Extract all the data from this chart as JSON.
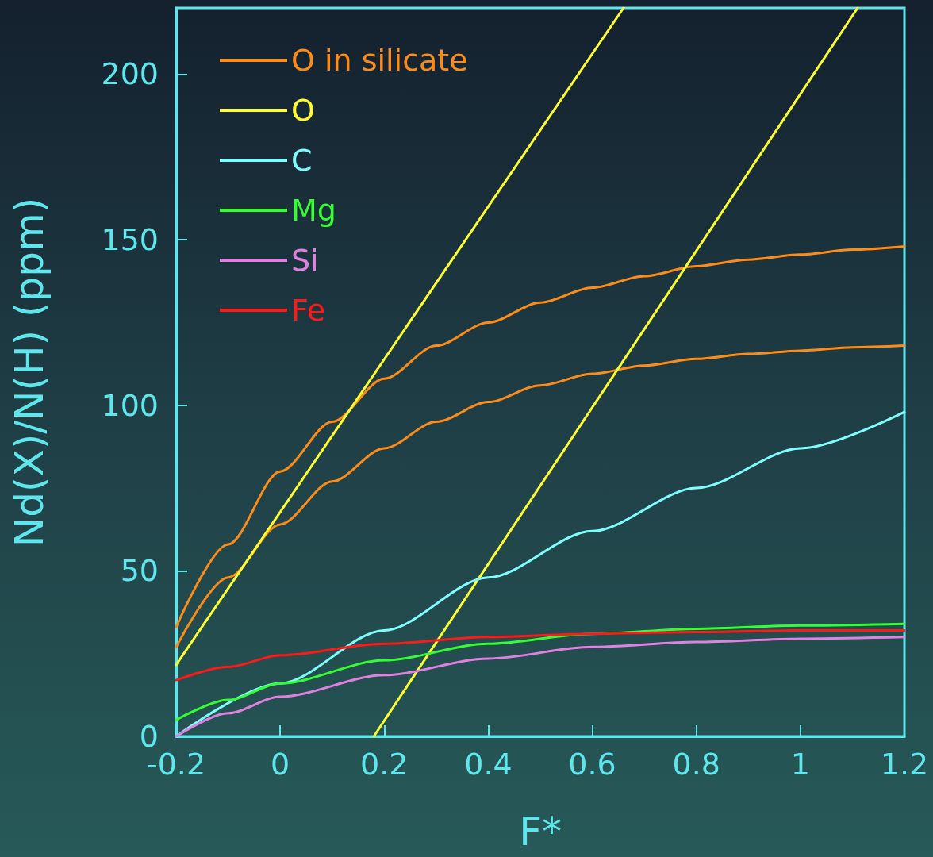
{
  "chart_data": {
    "type": "line",
    "xlabel": "F*",
    "ylabel": "Nd(X)/N(H) (ppm)",
    "xlim": [
      -0.2,
      1.2
    ],
    "xticks": [
      -0.2,
      0,
      0.2,
      0.4,
      0.6,
      0.8,
      1,
      1.2
    ],
    "ylim": [
      0,
      220
    ],
    "yticks": [
      0,
      50,
      100,
      150,
      200
    ],
    "grid": false,
    "legend": "top left",
    "marker": "none",
    "line_style": "solid",
    "series": [
      {
        "name": "O in silicate",
        "color": "#ff8c1a",
        "x": [
          -0.2,
          -0.1,
          0,
          0.1,
          0.2,
          0.3,
          0.4,
          0.5,
          0.6,
          0.7,
          0.8,
          0.9,
          1.0,
          1.1,
          1.2
        ],
        "values": [
          33,
          58,
          80,
          95,
          108,
          118,
          125,
          131,
          135.5,
          139,
          142,
          144,
          145.5,
          147,
          148
        ]
      },
      {
        "color": "#ff8c1a",
        "x": [
          -0.2,
          -0.1,
          0,
          0.1,
          0.2,
          0.3,
          0.4,
          0.5,
          0.6,
          0.7,
          0.8,
          0.9,
          1.0,
          1.1,
          1.2
        ],
        "values": [
          27,
          48,
          64,
          77,
          87,
          95,
          101,
          106,
          109.5,
          112,
          114,
          115.5,
          116.5,
          117.5,
          118
        ]
      },
      {
        "name": "O",
        "color": "#ffff33",
        "x": [
          -0.2,
          0.66
        ],
        "values": [
          21.6,
          220
        ]
      },
      {
        "color": "#ffff33",
        "x": [
          0.18,
          1.11
        ],
        "values": [
          0,
          220
        ]
      },
      {
        "name": "C",
        "color": "#80ffff",
        "x": [
          -0.2,
          0,
          0.2,
          0.4,
          0.6,
          0.8,
          1.0,
          1.2
        ],
        "values": [
          0,
          16,
          32,
          48,
          62,
          75,
          87,
          98
        ]
      },
      {
        "name": "Mg",
        "color": "#33ff33",
        "x": [
          -0.2,
          -0.1,
          0,
          0.2,
          0.4,
          0.6,
          0.8,
          1.0,
          1.2
        ],
        "values": [
          5,
          11,
          16,
          23,
          28,
          31,
          32.5,
          33.5,
          34
        ]
      },
      {
        "name": "Si",
        "color": "#e080e0",
        "x": [
          -0.2,
          -0.1,
          0,
          0.2,
          0.4,
          0.6,
          0.8,
          1.0,
          1.2
        ],
        "values": [
          0,
          7,
          12,
          18.5,
          23.5,
          27,
          28.5,
          29.5,
          30
        ]
      },
      {
        "name": "Fe",
        "color": "#ff1a1a",
        "x": [
          -0.2,
          -0.1,
          0,
          0.2,
          0.4,
          0.6,
          0.8,
          1.0,
          1.2
        ],
        "values": [
          17,
          21,
          24.5,
          28,
          30,
          31,
          31.5,
          32,
          32
        ]
      }
    ]
  }
}
